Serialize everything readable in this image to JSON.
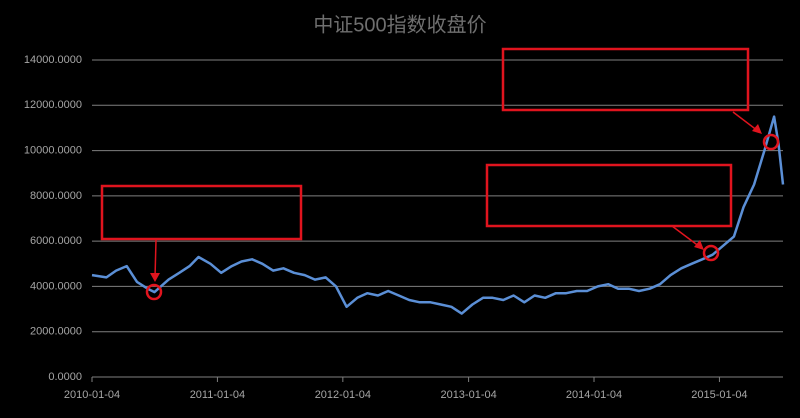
{
  "chart_data": {
    "type": "line",
    "title": "中证500指数收盘价",
    "x": [
      "2010-01-04",
      "2010-02-15",
      "2010-03-15",
      "2010-04-15",
      "2010-05-15",
      "2010-06-15",
      "2010-07-05",
      "2010-08-15",
      "2010-09-15",
      "2010-10-15",
      "2010-11-10",
      "2010-12-15",
      "2011-01-15",
      "2011-02-15",
      "2011-03-15",
      "2011-04-15",
      "2011-05-15",
      "2011-06-15",
      "2011-07-15",
      "2011-08-15",
      "2011-09-15",
      "2011-10-15",
      "2011-11-15",
      "2011-12-15",
      "2012-01-15",
      "2012-02-15",
      "2012-03-15",
      "2012-04-15",
      "2012-05-15",
      "2012-06-15",
      "2012-07-15",
      "2012-08-15",
      "2012-09-15",
      "2012-10-15",
      "2012-11-15",
      "2012-12-15",
      "2013-01-15",
      "2013-02-15",
      "2013-03-15",
      "2013-04-15",
      "2013-05-15",
      "2013-06-15",
      "2013-07-15",
      "2013-08-15",
      "2013-09-15",
      "2013-10-15",
      "2013-11-15",
      "2013-12-15",
      "2014-01-15",
      "2014-02-15",
      "2014-03-15",
      "2014-04-15",
      "2014-05-15",
      "2014-06-15",
      "2014-07-15",
      "2014-08-15",
      "2014-09-15",
      "2014-10-15",
      "2014-11-15",
      "2014-12-15",
      "2015-01-15",
      "2015-02-15",
      "2015-03-15",
      "2015-04-15",
      "2015-05-15",
      "2015-06-12",
      "2015-06-25",
      "2015-07-08"
    ],
    "values": [
      4500,
      4400,
      4700,
      4900,
      4200,
      3900,
      3750,
      4300,
      4600,
      4900,
      5300,
      5000,
      4600,
      4900,
      5100,
      5200,
      5000,
      4700,
      4800,
      4600,
      4500,
      4300,
      4400,
      4000,
      3100,
      3500,
      3700,
      3600,
      3800,
      3600,
      3400,
      3300,
      3300,
      3200,
      3100,
      2800,
      3200,
      3500,
      3500,
      3400,
      3600,
      3300,
      3600,
      3500,
      3700,
      3700,
      3800,
      3800,
      4000,
      4100,
      3900,
      3900,
      3800,
      3900,
      4100,
      4500,
      4800,
      5000,
      5200,
      5400,
      5800,
      6200,
      7500,
      8500,
      10000,
      11500,
      10300,
      8500
    ],
    "color": "#5b8fd6",
    "xlim": [
      "2010-01-04",
      "2015-07-08"
    ],
    "xticks": [
      "2010-01-04",
      "2011-01-04",
      "2012-01-04",
      "2013-01-04",
      "2014-01-04",
      "2015-01-04"
    ],
    "ylim": [
      0,
      14000
    ],
    "yticks": [
      {
        "value": 0,
        "label": "0.0000"
      },
      {
        "value": 2000,
        "label": "2000.0000"
      },
      {
        "value": 4000,
        "label": "4000.0000"
      },
      {
        "value": 6000,
        "label": "6000.0000"
      },
      {
        "value": 8000,
        "label": "8000.0000"
      },
      {
        "value": 10000,
        "label": "10000.0000"
      },
      {
        "value": 12000,
        "label": "12000.0000"
      },
      {
        "value": 14000,
        "label": "14000.0000"
      }
    ],
    "grid": true
  }
}
